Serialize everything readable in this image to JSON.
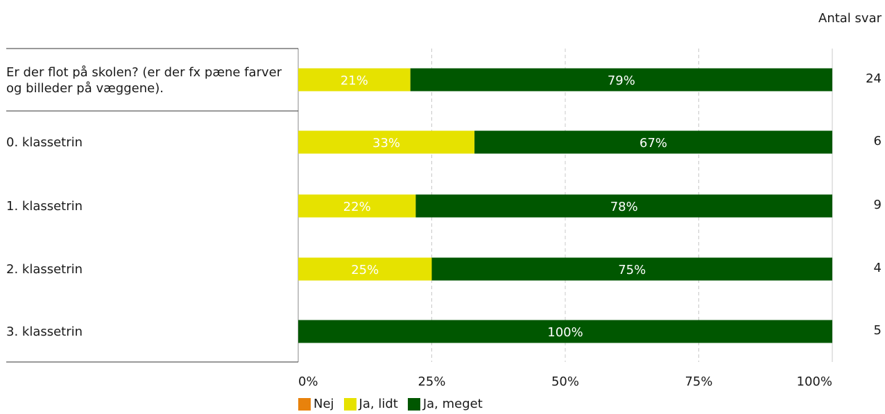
{
  "chart_data": {
    "type": "bar",
    "orientation": "horizontal",
    "stacked": true,
    "categories": [
      "Er der flot på skolen? (er der fx pæne farver og billeder på væggene).",
      "0. klassetrin",
      "1. klassetrin",
      "2. klassetrin",
      "3. klassetrin"
    ],
    "series": [
      {
        "name": "Nej",
        "color": "#e8820c",
        "values": [
          0,
          0,
          0,
          0,
          0
        ],
        "labels": [
          "",
          "",
          "",
          "",
          ""
        ]
      },
      {
        "name": "Ja, lidt",
        "color": "#e6e200",
        "values": [
          21,
          33,
          22,
          25,
          0
        ],
        "labels": [
          "21%",
          "33%",
          "22%",
          "25%",
          ""
        ]
      },
      {
        "name": "Ja, meget",
        "color": "#005700",
        "values": [
          79,
          67,
          78,
          75,
          100
        ],
        "labels": [
          "79%",
          "67%",
          "78%",
          "75%",
          "100%"
        ]
      }
    ],
    "xlim": [
      0,
      100
    ],
    "x_ticks": [
      "0%",
      "25%",
      "50%",
      "75%",
      "100%"
    ],
    "grid": true,
    "legend_position": "bottom",
    "count_header": "Antal\nsvar",
    "counts": [
      "24",
      "6",
      "9",
      "4",
      "5"
    ]
  }
}
